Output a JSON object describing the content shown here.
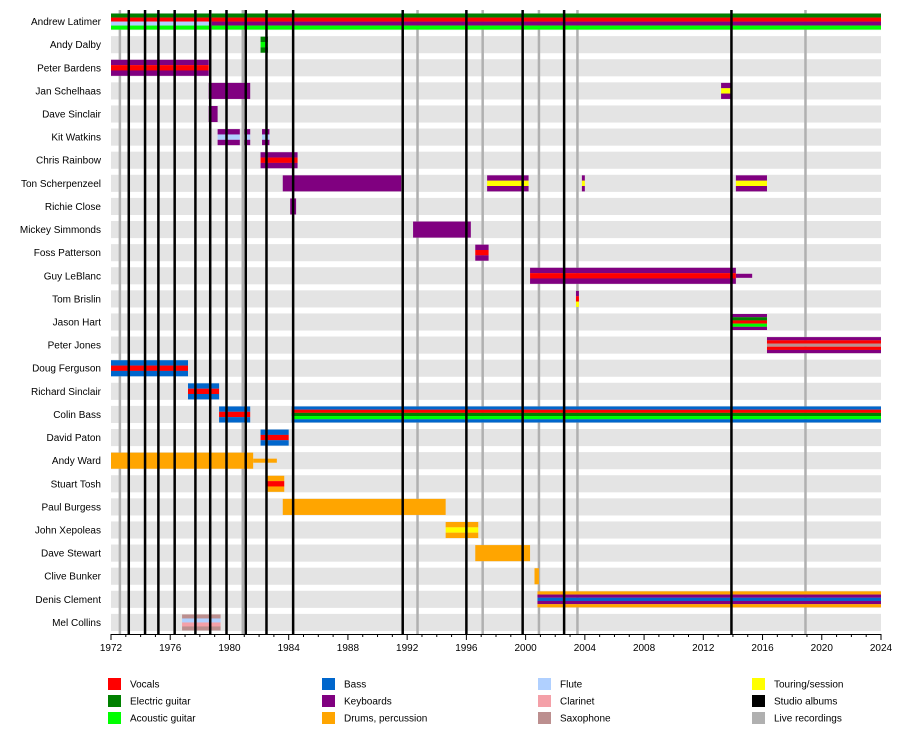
{
  "chart_data": {
    "type": "timeline",
    "title": "",
    "x_range": [
      1972,
      2024
    ],
    "x_ticks": [
      1972,
      1976,
      1980,
      1984,
      1988,
      1992,
      1996,
      2000,
      2004,
      2008,
      2012,
      2016,
      2020,
      2024
    ],
    "grid": true,
    "legend_position": "bottom",
    "roles": [
      {
        "key": "vocals",
        "label": "Vocals",
        "color": "#ff0000"
      },
      {
        "key": "electric",
        "label": "Electric guitar",
        "color": "#008000"
      },
      {
        "key": "acoustic",
        "label": "Acoustic guitar",
        "color": "#00ff00"
      },
      {
        "key": "bass",
        "label": "Bass",
        "color": "#0066cc"
      },
      {
        "key": "keys",
        "label": "Keyboards",
        "color": "#800080"
      },
      {
        "key": "drums",
        "label": "Drums, percussion",
        "color": "#ffa500"
      },
      {
        "key": "flute",
        "label": "Flute",
        "color": "#b0d0ff"
      },
      {
        "key": "clarinet",
        "label": "Clarinet",
        "color": "#f4a0a8"
      },
      {
        "key": "sax",
        "label": "Saxophone",
        "color": "#bc8f8f"
      },
      {
        "key": "touring",
        "label": "Touring/session",
        "color": "#ffff00"
      },
      {
        "key": "studio",
        "label": "Studio albums",
        "color": "#000000"
      },
      {
        "key": "live",
        "label": "Live recordings",
        "color": "#b0b0b0"
      }
    ],
    "studio_albums": [
      1973.2,
      1974.3,
      1975.2,
      1976.3,
      1977.7,
      1978.7,
      1979.8,
      1981.1,
      1982.5,
      1984.3,
      1991.7,
      1996.0,
      1999.8,
      2002.6,
      2013.9
    ],
    "live_recordings": [
      1972.6,
      1980.9,
      1992.7,
      1997.1,
      2000.9,
      2003.5,
      2018.9
    ],
    "members": [
      {
        "name": "Andrew Latimer",
        "bars": [
          {
            "start": 1972.0,
            "end": 1978.8,
            "layers": [
              "electric",
              "vocals",
              "flute",
              "acoustic"
            ]
          },
          {
            "start": 1978.8,
            "end": 2024.0,
            "layers": [
              "electric",
              "vocals",
              "keys",
              "acoustic"
            ]
          }
        ]
      },
      {
        "name": "Andy Dalby",
        "bars": [
          {
            "start": 1982.1,
            "end": 1982.6,
            "layers": [
              "electric",
              "acoustic",
              "electric"
            ]
          }
        ]
      },
      {
        "name": "Peter Bardens",
        "bars": [
          {
            "start": 1972.0,
            "end": 1978.6,
            "layers": [
              "keys",
              "vocals",
              "keys"
            ]
          }
        ]
      },
      {
        "name": "Jan Schelhaas",
        "bars": [
          {
            "start": 1978.6,
            "end": 1981.4,
            "layers": [
              "keys"
            ]
          },
          {
            "start": 2013.2,
            "end": 2013.9,
            "layers": [
              "keys",
              "touring",
              "keys"
            ]
          }
        ]
      },
      {
        "name": "Dave Sinclair",
        "bars": [
          {
            "start": 1978.6,
            "end": 1979.2,
            "layers": [
              "keys"
            ]
          }
        ]
      },
      {
        "name": "Kit Watkins",
        "bars": [
          {
            "start": 1979.2,
            "end": 1980.7,
            "layers": [
              "keys",
              "flute",
              "keys"
            ]
          },
          {
            "start": 1981.0,
            "end": 1981.4,
            "layers": [
              "keys",
              "flute",
              "keys"
            ]
          },
          {
            "start": 1982.2,
            "end": 1982.7,
            "layers": [
              "keys",
              "flute",
              "keys"
            ]
          }
        ]
      },
      {
        "name": "Chris Rainbow",
        "bars": [
          {
            "start": 1982.1,
            "end": 1984.6,
            "layers": [
              "keys",
              "vocals",
              "keys"
            ]
          }
        ]
      },
      {
        "name": "Ton Scherpenzeel",
        "bars": [
          {
            "start": 1983.6,
            "end": 1991.6,
            "layers": [
              "keys"
            ]
          },
          {
            "start": 1997.4,
            "end": 2000.2,
            "layers": [
              "keys",
              "touring",
              "keys"
            ]
          },
          {
            "start": 2003.8,
            "end": 2004.0,
            "layers": [
              "keys",
              "touring",
              "keys"
            ]
          },
          {
            "start": 2014.2,
            "end": 2016.3,
            "layers": [
              "keys",
              "touring",
              "keys"
            ]
          }
        ]
      },
      {
        "name": "Richie Close",
        "bars": [
          {
            "start": 1984.1,
            "end": 1984.5,
            "layers": [
              "keys"
            ]
          }
        ]
      },
      {
        "name": "Mickey Simmonds",
        "bars": [
          {
            "start": 1992.4,
            "end": 1996.3,
            "layers": [
              "keys"
            ]
          }
        ]
      },
      {
        "name": "Foss Patterson",
        "bars": [
          {
            "start": 1996.6,
            "end": 1997.5,
            "layers": [
              "keys",
              "vocals",
              "keys"
            ]
          }
        ]
      },
      {
        "name": "Guy LeBlanc",
        "bars": [
          {
            "start": 2000.3,
            "end": 2014.2,
            "layers": [
              "keys",
              "vocals",
              "keys"
            ]
          },
          {
            "start": 2014.2,
            "end": 2015.3,
            "layers": [
              "keys"
            ],
            "thin": true
          }
        ]
      },
      {
        "name": "Tom Brislin",
        "bars": [
          {
            "start": 2003.4,
            "end": 2003.6,
            "layers": [
              "keys",
              "vocals",
              "touring"
            ]
          }
        ]
      },
      {
        "name": "Jason Hart",
        "bars": [
          {
            "start": 2013.9,
            "end": 2016.3,
            "layers": [
              "keys",
              "electric",
              "vocals",
              "acoustic",
              "keys"
            ]
          }
        ]
      },
      {
        "name": "Peter Jones",
        "bars": [
          {
            "start": 2016.3,
            "end": 2024.0,
            "layers": [
              "keys",
              "vocals",
              "sax",
              "vocals",
              "keys"
            ]
          }
        ]
      },
      {
        "name": "Doug Ferguson",
        "bars": [
          {
            "start": 1972.0,
            "end": 1977.2,
            "layers": [
              "bass",
              "vocals",
              "bass"
            ]
          }
        ]
      },
      {
        "name": "Richard Sinclair",
        "bars": [
          {
            "start": 1977.2,
            "end": 1979.3,
            "layers": [
              "bass",
              "vocals",
              "bass"
            ]
          }
        ]
      },
      {
        "name": "Colin Bass",
        "bars": [
          {
            "start": 1979.3,
            "end": 1981.4,
            "layers": [
              "bass",
              "vocals",
              "bass"
            ]
          },
          {
            "start": 1984.2,
            "end": 2024.0,
            "layers": [
              "bass",
              "vocals",
              "electric",
              "acoustic",
              "bass"
            ]
          }
        ]
      },
      {
        "name": "David Paton",
        "bars": [
          {
            "start": 1982.1,
            "end": 1984.0,
            "layers": [
              "bass",
              "vocals",
              "bass"
            ]
          }
        ]
      },
      {
        "name": "Andy Ward",
        "bars": [
          {
            "start": 1972.0,
            "end": 1981.6,
            "layers": [
              "drums"
            ]
          },
          {
            "start": 1981.6,
            "end": 1983.2,
            "layers": [
              "drums"
            ],
            "thin": true
          }
        ]
      },
      {
        "name": "Stuart Tosh",
        "bars": [
          {
            "start": 1982.5,
            "end": 1983.7,
            "layers": [
              "drums",
              "vocals",
              "drums"
            ]
          }
        ]
      },
      {
        "name": "Paul Burgess",
        "bars": [
          {
            "start": 1983.6,
            "end": 1994.6,
            "layers": [
              "drums"
            ]
          }
        ]
      },
      {
        "name": "John Xepoleas",
        "bars": [
          {
            "start": 1994.6,
            "end": 1996.8,
            "layers": [
              "drums",
              "touring",
              "drums"
            ]
          }
        ]
      },
      {
        "name": "Dave Stewart",
        "bars": [
          {
            "start": 1996.6,
            "end": 2000.3,
            "layers": [
              "drums"
            ]
          }
        ]
      },
      {
        "name": "Clive Bunker",
        "bars": [
          {
            "start": 2000.6,
            "end": 2000.9,
            "layers": [
              "drums"
            ]
          }
        ]
      },
      {
        "name": "Denis Clement",
        "bars": [
          {
            "start": 2000.8,
            "end": 2024.0,
            "layers": [
              "drums",
              "keys",
              "bass",
              "keys",
              "drums"
            ]
          }
        ]
      },
      {
        "name": "Mel Collins",
        "bars": [
          {
            "start": 1976.8,
            "end": 1979.4,
            "layers": [
              "sax",
              "flute",
              "clarinet",
              "sax"
            ]
          }
        ]
      }
    ]
  }
}
